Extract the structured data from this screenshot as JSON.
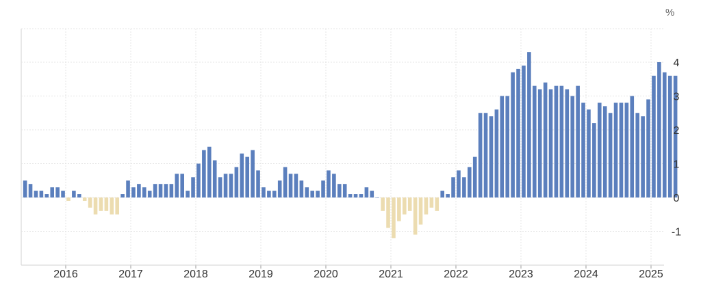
{
  "chart_data": {
    "type": "bar",
    "unit": "%",
    "x_tick_labels": [
      "2016",
      "2017",
      "2018",
      "2019",
      "2020",
      "2021",
      "2022",
      "2023",
      "2024",
      "2025"
    ],
    "y_tick_labels": [
      "-1",
      "0",
      "1",
      "2",
      "3",
      "4"
    ],
    "ylim": [
      -1.8,
      5
    ],
    "grid": true,
    "colors": {
      "positive": "#5b7fbd",
      "negative": "#ecdcb0",
      "grid": "#e4e4e4",
      "axis": "#d2d2d2",
      "tick_text": "#333333"
    },
    "series": [
      {
        "start": "2015-05",
        "frequency": "monthly",
        "values": [
          0.5,
          0.4,
          0.2,
          0.2,
          0.1,
          0.3,
          0.3,
          0.2,
          -0.1,
          0.2,
          0.1,
          -0.1,
          -0.3,
          -0.5,
          -0.4,
          -0.4,
          -0.5,
          -0.5,
          0.1,
          0.5,
          0.3,
          0.4,
          0.3,
          0.2,
          0.4,
          0.4,
          0.4,
          0.4,
          0.7,
          0.7,
          0.2,
          0.6,
          1.0,
          1.4,
          1.5,
          1.1,
          0.6,
          0.7,
          0.7,
          0.9,
          1.3,
          1.2,
          1.4,
          0.8,
          0.3,
          0.2,
          0.2,
          0.5,
          0.9,
          0.7,
          0.7,
          0.5,
          0.3,
          0.2,
          0.2,
          0.5,
          0.8,
          0.7,
          0.4,
          0.4,
          0.1,
          0.1,
          0.1,
          0.3,
          0.2,
          0.0,
          -0.4,
          -0.9,
          -1.2,
          -0.7,
          -0.5,
          -0.4,
          -1.1,
          -0.8,
          -0.5,
          -0.3,
          -0.4,
          0.2,
          0.1,
          0.6,
          0.8,
          0.6,
          0.9,
          1.2,
          2.5,
          2.5,
          2.4,
          2.6,
          3.0,
          3.0,
          3.7,
          3.8,
          3.9,
          4.3,
          3.3,
          3.2,
          3.4,
          3.2,
          3.3,
          3.3,
          3.2,
          3.0,
          3.3,
          2.8,
          2.6,
          2.2,
          2.8,
          2.7,
          2.5,
          2.8,
          2.8,
          2.8,
          3.0,
          2.5,
          2.4,
          2.9,
          3.6,
          4.0,
          3.7,
          3.6,
          3.6
        ]
      }
    ]
  }
}
